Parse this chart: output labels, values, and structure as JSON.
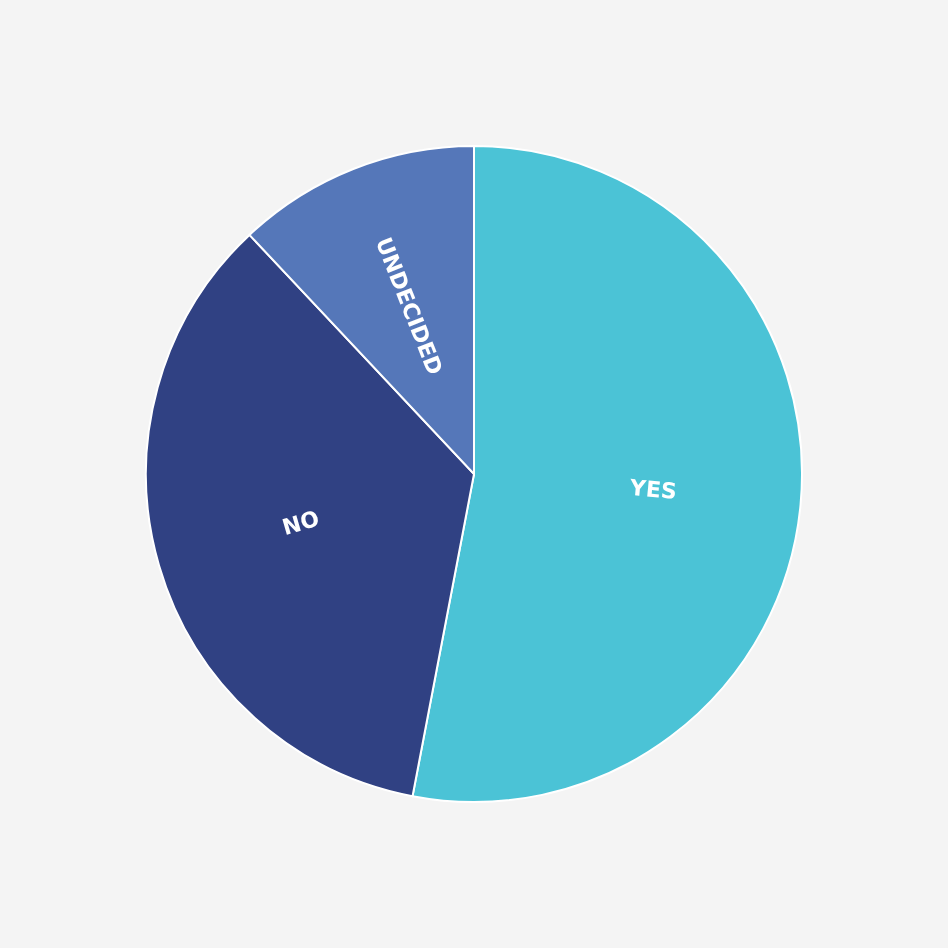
{
  "chart_data": {
    "type": "pie",
    "categories": [
      "YES",
      "NO",
      "UNDECIDED"
    ],
    "values": [
      53,
      35,
      12
    ],
    "colors": [
      "#4bc3d6",
      "#304183",
      "#5577b9"
    ]
  }
}
